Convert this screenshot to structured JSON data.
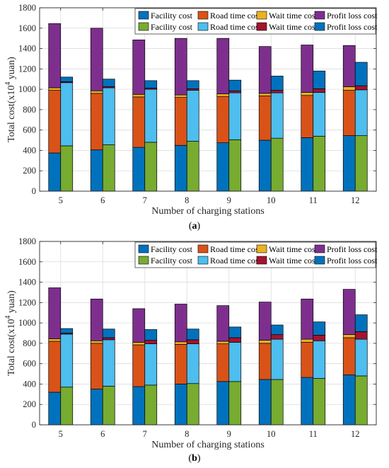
{
  "colors": {
    "facility_a": "#0072BD",
    "road_a": "#D95319",
    "wait_a": "#EDB120",
    "profit_a": "#7E2F8E",
    "facility_b": "#77AC30",
    "road_b": "#4DBEEE",
    "wait_b": "#A2142F",
    "profit_b": "#0072BD"
  },
  "chart_data": [
    {
      "type": "bar",
      "caption_label": "a",
      "xlabel": "Number of charging stations",
      "ylabel_prefix": "Total cost(x10",
      "ylabel_sup": "4",
      "ylabel_suffix": " yuan)",
      "ylim": [
        0,
        1800
      ],
      "yticks": [
        0,
        200,
        400,
        600,
        800,
        1000,
        1200,
        1400,
        1600,
        1800
      ],
      "categories": [
        "5",
        "6",
        "7",
        "8",
        "9",
        "10",
        "11",
        "12"
      ],
      "grid": true,
      "legend_position": "top-right",
      "groups": [
        {
          "series": [
            {
              "name": "Facility cost",
              "color_key": "facility_a",
              "values": [
                375,
                405,
                430,
                450,
                475,
                500,
                525,
                545
              ]
            },
            {
              "name": "Road time cost",
              "color_key": "road_a",
              "values": [
                615,
                555,
                495,
                470,
                455,
                435,
                415,
                445
              ]
            },
            {
              "name": "Wait time cost",
              "color_key": "wait_a",
              "values": [
                25,
                25,
                25,
                25,
                25,
                25,
                30,
                35
              ]
            },
            {
              "name": "Profit loss cost",
              "color_key": "profit_a",
              "values": [
                630,
                615,
                535,
                555,
                545,
                460,
                465,
                405
              ]
            }
          ]
        },
        {
          "series": [
            {
              "name": "Facility cost",
              "color_key": "facility_b",
              "values": [
                445,
                455,
                480,
                490,
                505,
                520,
                540,
                545
              ]
            },
            {
              "name": "Road time cost",
              "color_key": "road_b",
              "values": [
                620,
                560,
                520,
                500,
                460,
                445,
                430,
                450
              ]
            },
            {
              "name": "Wait time cost",
              "color_key": "wait_b",
              "values": [
                10,
                12,
                12,
                15,
                20,
                25,
                35,
                40
              ]
            },
            {
              "name": "Profit loss cost",
              "color_key": "profit_b",
              "values": [
                45,
                73,
                73,
                80,
                105,
                140,
                175,
                230
              ]
            }
          ]
        }
      ]
    },
    {
      "type": "bar",
      "caption_label": "b",
      "xlabel": "Number of charging stations",
      "ylabel_prefix": "Total cost(x10",
      "ylabel_sup": "4",
      "ylabel_suffix": " yuan)",
      "ylim": [
        0,
        1800
      ],
      "yticks": [
        0,
        200,
        400,
        600,
        800,
        1000,
        1200,
        1400,
        1600,
        1800
      ],
      "categories": [
        "5",
        "6",
        "7",
        "8",
        "9",
        "10",
        "11",
        "12"
      ],
      "grid": true,
      "legend_position": "top-right",
      "groups": [
        {
          "series": [
            {
              "name": "Facility cost",
              "color_key": "facility_a",
              "values": [
                320,
                350,
                375,
                400,
                425,
                445,
                465,
                490
              ]
            },
            {
              "name": "Road time cost",
              "color_key": "road_a",
              "values": [
                500,
                450,
                410,
                390,
                370,
                355,
                345,
                365
              ]
            },
            {
              "name": "Wait time cost",
              "color_key": "wait_a",
              "values": [
                25,
                25,
                25,
                25,
                25,
                30,
                30,
                30
              ]
            },
            {
              "name": "Profit loss cost",
              "color_key": "profit_a",
              "values": [
                500,
                410,
                330,
                370,
                350,
                375,
                395,
                445
              ]
            }
          ]
        },
        {
          "series": [
            {
              "name": "Facility cost",
              "color_key": "facility_b",
              "values": [
                370,
                380,
                390,
                405,
                425,
                445,
                455,
                480
              ]
            },
            {
              "name": "Road time cost",
              "color_key": "road_b",
              "values": [
                520,
                455,
                405,
                390,
                385,
                395,
                370,
                360
              ]
            },
            {
              "name": "Wait time cost",
              "color_key": "wait_b",
              "values": [
                10,
                20,
                35,
                40,
                45,
                45,
                55,
                75
              ]
            },
            {
              "name": "Profit loss cost",
              "color_key": "profit_b",
              "values": [
                45,
                85,
                105,
                105,
                105,
                95,
                130,
                165
              ]
            }
          ]
        }
      ]
    }
  ]
}
